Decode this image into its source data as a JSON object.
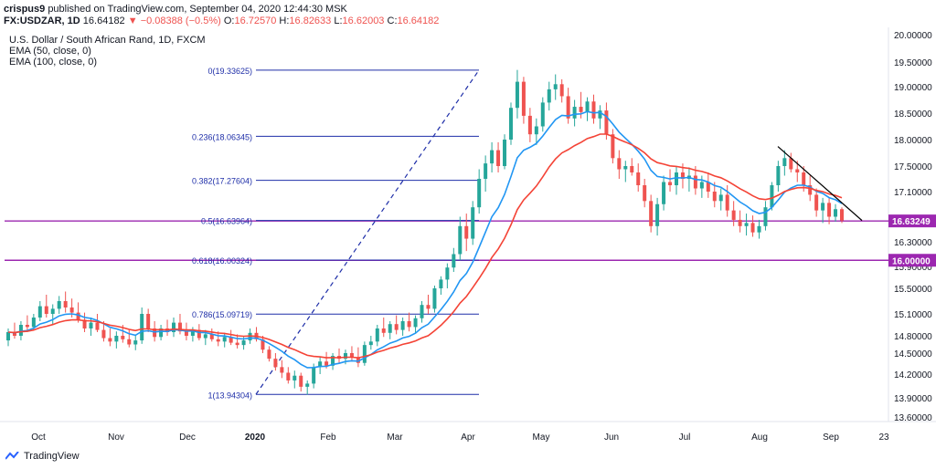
{
  "header": {
    "user": "crispus9",
    "published": "published on TradingView.com, September 04, 2020 12:44:30 MSK"
  },
  "ohlc": {
    "symbol": "FX:USDZAR, 1D",
    "last": "16.64182",
    "change": "▼ −0.08388 (−0.5%)",
    "o_label": "O:",
    "o": "16.72570",
    "h_label": "H:",
    "h": "16.82633",
    "l_label": "L:",
    "l": "16.62003",
    "c_label": "C:",
    "c": "16.64182"
  },
  "legend": {
    "title": "U.S. Dollar / South African Rand, 1D, FXCM",
    "ema50": "EMA (50, close, 0)",
    "ema100": "EMA (100, close, 0)"
  },
  "footer": {
    "brand": "TradingView"
  },
  "colors": {
    "up": "#26a69a",
    "down": "#ef5350",
    "ema50": "#2196f3",
    "ema100": "#f44336",
    "fib": "#1e2ea8",
    "hline": "#9c27b0",
    "trend": "#000000",
    "last_bg": "#9c27b0"
  },
  "chart_data": {
    "type": "candlestick",
    "y_ticks": [
      "20.00000",
      "19.50000",
      "19.00000",
      "18.50000",
      "18.00000",
      "17.50000",
      "17.10000",
      "16.30000",
      "15.90000",
      "15.50000",
      "15.10000",
      "14.80000",
      "14.50000",
      "14.20000",
      "13.90000",
      "13.60000"
    ],
    "x_ticks": [
      "Oct",
      "Nov",
      "Dec",
      "2020",
      "Feb",
      "Mar",
      "Apr",
      "May",
      "Jun",
      "Jul",
      "Aug",
      "Sep",
      "23"
    ],
    "price_labels": [
      {
        "value": 16.63249,
        "text": "16.63249"
      },
      {
        "value": 16.0,
        "text": "16.00000"
      }
    ],
    "fib_levels": [
      {
        "label": "0(19.33625)",
        "value": 19.33625
      },
      {
        "label": "0.236(18.06345)",
        "value": 18.06345
      },
      {
        "label": "0.382(17.27604)",
        "value": 17.27604
      },
      {
        "label": "0.5(16.63964)",
        "value": 16.63964
      },
      {
        "label": "0.618(16.00324)",
        "value": 16.00324
      },
      {
        "label": "0.786(15.09719)",
        "value": 15.09719
      },
      {
        "label": "1(13.94304)",
        "value": 13.94304
      }
    ],
    "horizontal_lines": [
      16.63249,
      16.0
    ],
    "series_close_by_month": {
      "months": [
        "Sep",
        "Oct",
        "Nov",
        "Dec",
        "Jan",
        "Feb",
        "Mar",
        "Apr",
        "May",
        "Jun",
        "Jul",
        "Aug",
        "Sep"
      ],
      "approx_close": [
        14.75,
        15.15,
        14.9,
        14.65,
        14.05,
        14.95,
        15.8,
        18.9,
        18.4,
        17.3,
        17.15,
        16.9,
        16.64
      ]
    },
    "candles": [
      [
        14.72,
        14.9,
        14.62,
        14.85
      ],
      [
        14.85,
        14.98,
        14.75,
        14.8
      ],
      [
        14.8,
        15.0,
        14.72,
        14.95
      ],
      [
        14.95,
        15.08,
        14.85,
        14.92
      ],
      [
        14.92,
        15.1,
        14.88,
        15.05
      ],
      [
        15.05,
        15.3,
        15.0,
        15.22
      ],
      [
        15.22,
        15.4,
        15.05,
        15.1
      ],
      [
        15.1,
        15.25,
        14.95,
        15.18
      ],
      [
        15.18,
        15.38,
        15.1,
        15.3
      ],
      [
        15.3,
        15.45,
        15.12,
        15.2
      ],
      [
        15.2,
        15.34,
        15.05,
        15.12
      ],
      [
        15.12,
        15.28,
        14.98,
        15.02
      ],
      [
        15.02,
        15.12,
        14.85,
        14.9
      ],
      [
        14.9,
        15.05,
        14.8,
        14.98
      ],
      [
        14.98,
        15.1,
        14.85,
        14.88
      ],
      [
        14.88,
        15.0,
        14.7,
        14.76
      ],
      [
        14.76,
        14.9,
        14.62,
        14.7
      ],
      [
        14.7,
        14.86,
        14.58,
        14.8
      ],
      [
        14.8,
        14.95,
        14.68,
        14.74
      ],
      [
        14.74,
        14.88,
        14.6,
        14.65
      ],
      [
        14.65,
        14.8,
        14.55,
        14.72
      ],
      [
        14.72,
        15.2,
        14.66,
        15.1
      ],
      [
        15.1,
        15.18,
        14.85,
        14.9
      ],
      [
        14.9,
        15.0,
        14.7,
        14.78
      ],
      [
        14.78,
        14.95,
        14.72,
        14.9
      ],
      [
        14.9,
        15.02,
        14.8,
        14.85
      ],
      [
        14.85,
        15.05,
        14.78,
        14.98
      ],
      [
        14.98,
        15.1,
        14.82,
        14.86
      ],
      [
        14.86,
        14.98,
        14.72,
        14.8
      ],
      [
        14.8,
        14.92,
        14.7,
        14.88
      ],
      [
        14.88,
        14.96,
        14.72,
        14.76
      ],
      [
        14.76,
        14.88,
        14.64,
        14.82
      ],
      [
        14.82,
        14.9,
        14.7,
        14.74
      ],
      [
        14.74,
        14.86,
        14.62,
        14.7
      ],
      [
        14.7,
        14.84,
        14.6,
        14.78
      ],
      [
        14.78,
        14.88,
        14.64,
        14.68
      ],
      [
        14.68,
        14.82,
        14.58,
        14.64
      ],
      [
        14.64,
        14.78,
        14.56,
        14.72
      ],
      [
        14.72,
        14.9,
        14.66,
        14.84
      ],
      [
        14.84,
        14.92,
        14.7,
        14.74
      ],
      [
        14.74,
        14.8,
        14.5,
        14.56
      ],
      [
        14.56,
        14.62,
        14.38,
        14.42
      ],
      [
        14.42,
        14.5,
        14.25,
        14.3
      ],
      [
        14.3,
        14.4,
        14.15,
        14.22
      ],
      [
        14.22,
        14.3,
        14.08,
        14.12
      ],
      [
        14.12,
        14.25,
        14.02,
        14.18
      ],
      [
        14.18,
        14.22,
        13.98,
        14.04
      ],
      [
        14.04,
        14.12,
        13.94,
        14.08
      ],
      [
        14.08,
        14.35,
        14.02,
        14.3
      ],
      [
        14.3,
        14.45,
        14.2,
        14.38
      ],
      [
        14.38,
        14.52,
        14.28,
        14.32
      ],
      [
        14.32,
        14.5,
        14.26,
        14.46
      ],
      [
        14.46,
        14.58,
        14.36,
        14.42
      ],
      [
        14.42,
        14.56,
        14.34,
        14.5
      ],
      [
        14.5,
        14.62,
        14.38,
        14.44
      ],
      [
        14.44,
        14.6,
        14.3,
        14.36
      ],
      [
        14.36,
        14.7,
        14.32,
        14.64
      ],
      [
        14.64,
        14.8,
        14.56,
        14.7
      ],
      [
        14.7,
        14.95,
        14.62,
        14.9
      ],
      [
        14.9,
        15.05,
        14.78,
        14.84
      ],
      [
        14.84,
        15.0,
        14.74,
        14.96
      ],
      [
        14.96,
        15.08,
        14.82,
        14.88
      ],
      [
        14.88,
        15.05,
        14.8,
        15.0
      ],
      [
        15.0,
        15.12,
        14.86,
        14.92
      ],
      [
        14.92,
        15.08,
        14.84,
        15.04
      ],
      [
        15.04,
        15.3,
        14.98,
        15.24
      ],
      [
        15.24,
        15.4,
        15.1,
        15.18
      ],
      [
        15.18,
        15.55,
        15.12,
        15.5
      ],
      [
        15.5,
        15.72,
        15.4,
        15.66
      ],
      [
        15.66,
        15.95,
        15.5,
        15.88
      ],
      [
        15.88,
        16.2,
        15.8,
        16.1
      ],
      [
        16.1,
        16.7,
        16.0,
        16.55
      ],
      [
        16.55,
        16.75,
        16.15,
        16.35
      ],
      [
        16.35,
        16.95,
        16.25,
        16.85
      ],
      [
        16.85,
        17.45,
        16.75,
        17.3
      ],
      [
        17.3,
        17.7,
        17.1,
        17.55
      ],
      [
        17.55,
        17.95,
        17.4,
        17.8
      ],
      [
        17.8,
        17.95,
        17.4,
        17.5
      ],
      [
        17.5,
        18.1,
        17.45,
        18.0
      ],
      [
        18.0,
        18.7,
        17.9,
        18.6
      ],
      [
        18.6,
        19.34,
        18.4,
        19.1
      ],
      [
        19.1,
        19.2,
        18.3,
        18.45
      ],
      [
        18.45,
        18.6,
        17.95,
        18.1
      ],
      [
        18.1,
        18.4,
        17.9,
        18.25
      ],
      [
        18.25,
        18.8,
        18.15,
        18.7
      ],
      [
        18.7,
        19.1,
        18.55,
        18.95
      ],
      [
        18.95,
        19.25,
        18.75,
        19.05
      ],
      [
        19.05,
        19.15,
        18.7,
        18.82
      ],
      [
        18.82,
        18.98,
        18.3,
        18.4
      ],
      [
        18.4,
        18.75,
        18.25,
        18.62
      ],
      [
        18.62,
        18.9,
        18.4,
        18.52
      ],
      [
        18.52,
        18.8,
        18.35,
        18.72
      ],
      [
        18.72,
        18.85,
        18.3,
        18.4
      ],
      [
        18.4,
        18.65,
        18.2,
        18.55
      ],
      [
        18.55,
        18.7,
        18.0,
        18.1
      ],
      [
        18.1,
        18.2,
        17.55,
        17.65
      ],
      [
        17.65,
        17.8,
        17.3,
        17.45
      ],
      [
        17.45,
        17.6,
        17.25,
        17.5
      ],
      [
        17.5,
        17.65,
        17.35,
        17.4
      ],
      [
        17.4,
        17.55,
        17.1,
        17.2
      ],
      [
        17.2,
        17.3,
        16.85,
        16.95
      ],
      [
        16.95,
        17.05,
        16.45,
        16.55
      ],
      [
        16.55,
        17.0,
        16.4,
        16.9
      ],
      [
        16.9,
        17.35,
        16.8,
        17.25
      ],
      [
        17.25,
        17.45,
        17.1,
        17.2
      ],
      [
        17.2,
        17.5,
        17.05,
        17.4
      ],
      [
        17.4,
        17.55,
        17.15,
        17.3
      ],
      [
        17.3,
        17.48,
        17.1,
        17.35
      ],
      [
        17.35,
        17.5,
        17.05,
        17.15
      ],
      [
        17.15,
        17.35,
        17.0,
        17.25
      ],
      [
        17.25,
        17.4,
        17.0,
        17.1
      ],
      [
        17.1,
        17.25,
        16.85,
        16.95
      ],
      [
        16.95,
        17.15,
        16.8,
        17.05
      ],
      [
        17.05,
        17.2,
        16.7,
        16.8
      ],
      [
        16.8,
        16.95,
        16.55,
        16.65
      ],
      [
        16.65,
        16.8,
        16.45,
        16.55
      ],
      [
        16.55,
        16.75,
        16.4,
        16.6
      ],
      [
        16.6,
        16.72,
        16.38,
        16.45
      ],
      [
        16.45,
        16.65,
        16.35,
        16.55
      ],
      [
        16.55,
        16.95,
        16.48,
        16.85
      ],
      [
        16.85,
        17.25,
        16.8,
        17.2
      ],
      [
        17.2,
        17.6,
        17.1,
        17.5
      ],
      [
        17.5,
        17.8,
        17.35,
        17.65
      ],
      [
        17.65,
        17.75,
        17.4,
        17.45
      ],
      [
        17.45,
        17.6,
        17.25,
        17.4
      ],
      [
        17.4,
        17.5,
        17.1,
        17.2
      ],
      [
        17.2,
        17.35,
        16.95,
        17.05
      ],
      [
        17.05,
        17.15,
        16.7,
        16.8
      ],
      [
        16.8,
        17.0,
        16.6,
        16.92
      ],
      [
        16.92,
        17.0,
        16.58,
        16.7
      ],
      [
        16.7,
        16.9,
        16.62,
        16.82
      ],
      [
        16.82,
        16.85,
        16.6,
        16.64
      ]
    ]
  }
}
